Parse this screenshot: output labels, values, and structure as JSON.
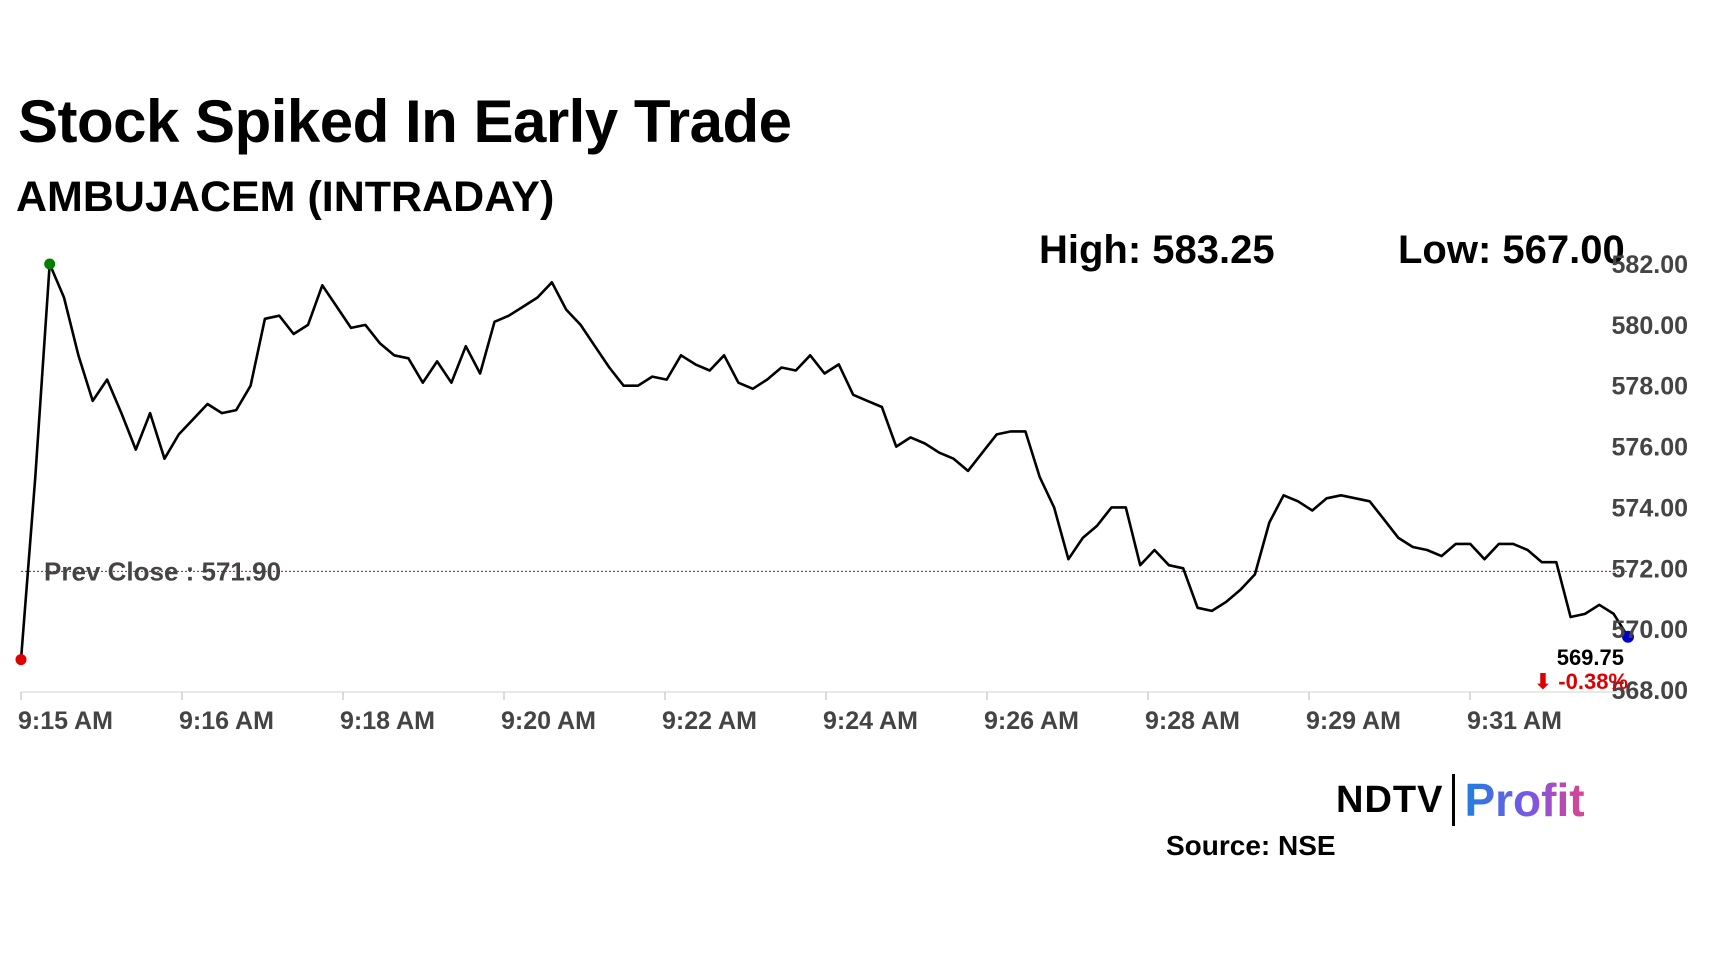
{
  "header": {
    "title": "Stock Spiked In Early Trade",
    "subtitle": "AMBUJACEM (INTRADAY)",
    "high": "High: 583.25",
    "low": "Low: 567.00"
  },
  "footer": {
    "brand_ndtv": "NDTV",
    "brand_profit": "Profit",
    "source": "Source: NSE"
  },
  "chart_data": {
    "type": "line",
    "ylim": [
      568,
      583
    ],
    "y_ticks": [
      "582.00",
      "580.00",
      "578.00",
      "576.00",
      "574.00",
      "572.00",
      "570.00",
      "568.00"
    ],
    "y_tick_values": [
      582,
      580,
      578,
      576,
      574,
      572,
      570,
      568
    ],
    "x_ticks": [
      "9:15 AM",
      "9:16 AM",
      "9:18 AM",
      "9:20 AM",
      "9:22 AM",
      "9:24 AM",
      "9:26 AM",
      "9:28 AM",
      "9:29 AM",
      "9:31 AM"
    ],
    "reference_line": {
      "label": "Prev Close : 571.90",
      "value": 571.9,
      "color": "#cc0000"
    },
    "last_value": "569.75",
    "change": "⬇ -0.38%",
    "line_color": "#000000",
    "start_marker_color": "#e00000",
    "high_marker_color": "#008000",
    "end_marker_color": "#0000cc",
    "values": [
      569,
      575,
      582,
      580.9,
      579,
      577.5,
      578.2,
      577.1,
      575.9,
      577.1,
      575.6,
      576.4,
      576.9,
      577.4,
      577.1,
      577.2,
      578,
      580.2,
      580.3,
      579.7,
      580,
      581.3,
      580.6,
      579.9,
      580,
      579.4,
      579,
      578.9,
      578.1,
      578.8,
      578.1,
      579.3,
      578.4,
      580.1,
      580.3,
      580.6,
      580.9,
      581.4,
      580.5,
      580,
      579.3,
      578.6,
      578,
      578,
      578.3,
      578.2,
      579,
      578.7,
      578.5,
      579,
      578.1,
      577.9,
      578.2,
      578.6,
      578.5,
      579,
      578.4,
      578.7,
      577.7,
      577.5,
      577.3,
      576,
      576.3,
      576.1,
      575.8,
      575.6,
      575.2,
      575.8,
      576.4,
      576.5,
      576.5,
      575,
      574,
      572.3,
      573,
      573.4,
      574,
      574,
      572.1,
      572.6,
      572.1,
      572,
      570.7,
      570.6,
      570.9,
      571.3,
      571.8,
      573.5,
      574.4,
      574.2,
      573.9,
      574.3,
      574.4,
      574.3,
      574.2,
      573.6,
      573,
      572.7,
      572.6,
      572.4,
      572.8,
      572.8,
      572.3,
      572.8,
      572.8,
      572.6,
      572.2,
      572.2,
      570.4,
      570.5,
      570.8,
      570.5,
      569.75
    ]
  }
}
